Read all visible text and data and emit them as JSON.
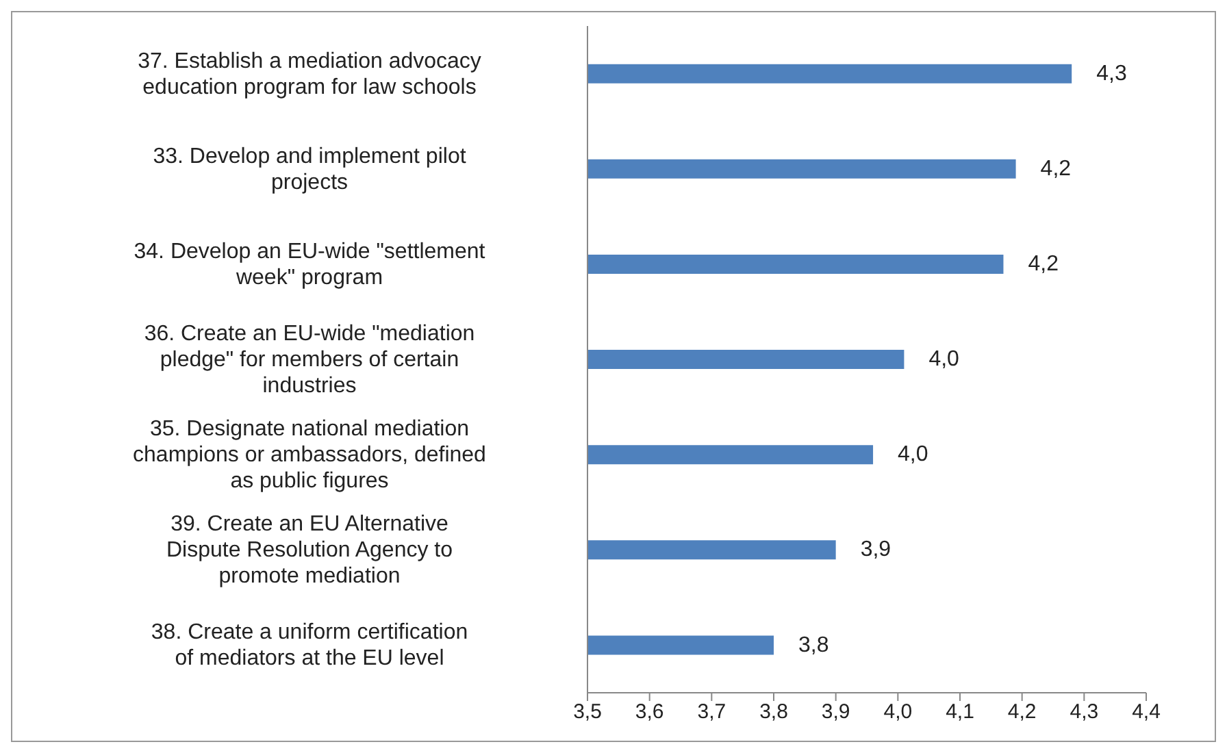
{
  "chart_data": {
    "type": "bar",
    "orientation": "horizontal",
    "categories": [
      "37. Establish a mediation advocacy education program for law schools",
      "33. Develop and implement pilot projects",
      "34. Develop an EU-wide \"settlement week\" program",
      "36. Create an EU-wide \"mediation pledge\" for members of certain industries",
      "35. Designate national mediation champions or ambassadors, defined as public figures",
      "39. Create an EU Alternative Dispute Resolution Agency to promote mediation",
      "38. Create a uniform certification of mediators at the EU level"
    ],
    "values": [
      4.28,
      4.19,
      4.17,
      4.01,
      3.96,
      3.9,
      3.8
    ],
    "value_labels": [
      "4,3",
      "4,2",
      "4,2",
      "4,0",
      "4,0",
      "3,9",
      "3,8"
    ],
    "color": "#4f81bd",
    "xlim": [
      3.5,
      4.4
    ],
    "xticks": [
      {
        "value": 3.5,
        "label": "3,5"
      },
      {
        "value": 3.6,
        "label": "3,6"
      },
      {
        "value": 3.7,
        "label": "3,7"
      },
      {
        "value": 3.8,
        "label": "3,8"
      },
      {
        "value": 3.9,
        "label": "3,9"
      },
      {
        "value": 4.0,
        "label": "4,0"
      },
      {
        "value": 4.1,
        "label": "4,1"
      },
      {
        "value": 4.2,
        "label": "4,2"
      },
      {
        "value": 4.3,
        "label": "4,3"
      },
      {
        "value": 4.4,
        "label": "4,4"
      }
    ],
    "grid": false,
    "legend": false
  }
}
